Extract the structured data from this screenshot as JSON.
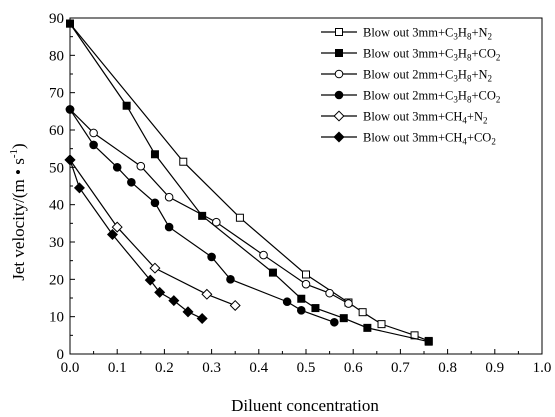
{
  "chart_data": {
    "type": "line",
    "xlabel": "Diluent concentration",
    "ylabel": {
      "main": "Jet velocity/(m",
      "mid": "s",
      "sup": "-1",
      "end": ")"
    },
    "xlim": [
      0.0,
      1.0
    ],
    "ylim": [
      0,
      90
    ],
    "xticks": [
      "0.0",
      "0.1",
      "0.2",
      "0.3",
      "0.4",
      "0.5",
      "0.6",
      "0.7",
      "0.8",
      "0.9",
      "1.0"
    ],
    "yticks": [
      "0",
      "10",
      "20",
      "30",
      "40",
      "50",
      "60",
      "70",
      "80",
      "90"
    ],
    "grid": false,
    "legend_position": "top-right",
    "series": [
      {
        "name": "Blow out 3mm+C3H8+N2",
        "label": {
          "prefix": "Blow out 3mm+C",
          "s1": "3",
          "mid": "H",
          "s2": "8",
          "suffix": "+N",
          "s3": "2"
        },
        "marker": "square-open",
        "x": [
          0.0,
          0.24,
          0.36,
          0.5,
          0.59,
          0.62,
          0.66,
          0.73,
          0.76
        ],
        "y": [
          88.5,
          51.5,
          36.5,
          21.3,
          13.8,
          11.2,
          8.0,
          5.0,
          3.5
        ]
      },
      {
        "name": "Blow out 3mm+C3H8+CO2",
        "label": {
          "prefix": "Blow out 3mm+C",
          "s1": "3",
          "mid": "H",
          "s2": "8",
          "suffix": "+CO",
          "s3": "2"
        },
        "marker": "square-filled",
        "x": [
          0.0,
          0.12,
          0.18,
          0.28,
          0.43,
          0.49,
          0.52,
          0.58,
          0.63,
          0.76
        ],
        "y": [
          88.5,
          66.5,
          53.5,
          37.0,
          21.8,
          14.8,
          12.3,
          9.6,
          7.0,
          3.3
        ]
      },
      {
        "name": "Blow out 2mm+C3H8+N2",
        "label": {
          "prefix": "Blow out 2mm+C",
          "s1": "3",
          "mid": "H",
          "s2": "8",
          "suffix": "+N",
          "s3": "2"
        },
        "marker": "circle-open",
        "x": [
          0.0,
          0.05,
          0.15,
          0.21,
          0.31,
          0.41,
          0.5,
          0.55,
          0.59
        ],
        "y": [
          65.5,
          59.2,
          50.3,
          42.0,
          35.3,
          26.5,
          18.7,
          16.3,
          13.5
        ]
      },
      {
        "name": "Blow out 2mm+C3H8+CO2",
        "label": {
          "prefix": "Blow out 2mm+C",
          "s1": "3",
          "mid": "H",
          "s2": "8",
          "suffix": "+CO",
          "s3": "2"
        },
        "marker": "circle-filled",
        "x": [
          0.0,
          0.05,
          0.1,
          0.13,
          0.18,
          0.21,
          0.3,
          0.34,
          0.46,
          0.49,
          0.56
        ],
        "y": [
          65.5,
          56.0,
          50.0,
          46.0,
          40.5,
          34.0,
          26.0,
          20.0,
          14.0,
          11.7,
          8.5
        ]
      },
      {
        "name": "Blow out 3mm+CH4+N2",
        "label": {
          "prefix": "Blow out 3mm+CH",
          "s1": "4",
          "mid": "",
          "s2": "",
          "suffix": "+N",
          "s3": "2"
        },
        "marker": "diamond-open",
        "x": [
          0.0,
          0.1,
          0.18,
          0.29,
          0.35
        ],
        "y": [
          52.0,
          34.0,
          23.0,
          16.0,
          13.0
        ]
      },
      {
        "name": "Blow out 3mm+CH4+CO2",
        "label": {
          "prefix": "Blow out 3mm+CH",
          "s1": "4",
          "mid": "",
          "s2": "",
          "suffix": "+CO",
          "s3": "2"
        },
        "marker": "diamond-filled",
        "x": [
          0.0,
          0.02,
          0.09,
          0.17,
          0.19,
          0.22,
          0.25,
          0.28
        ],
        "y": [
          52.0,
          44.5,
          32.0,
          19.8,
          16.5,
          14.3,
          11.3,
          9.5
        ]
      }
    ]
  }
}
